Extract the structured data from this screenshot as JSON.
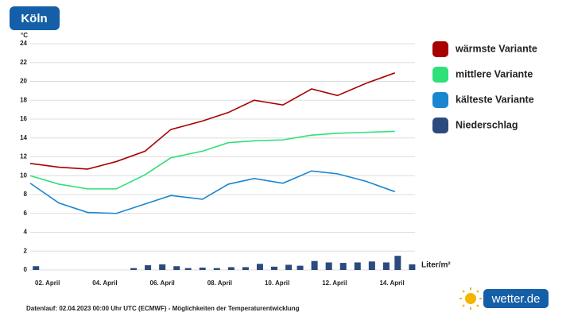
{
  "title": "Köln",
  "footer": "Datenlauf: 02.04.2023 00:00 Uhr UTC (ECMWF) - Möglichkeiten der Temperaturentwicklung",
  "logo": "wetter.de",
  "chart_data": {
    "type": "line",
    "y_unit": "°C",
    "bar_unit": "Liter/m²",
    "xlim": [
      1.4,
      14.8
    ],
    "xticks": [
      {
        "value": 2,
        "label": "02. April"
      },
      {
        "value": 4,
        "label": "04. April"
      },
      {
        "value": 6,
        "label": "06. April"
      },
      {
        "value": 8,
        "label": "08. April"
      },
      {
        "value": 10,
        "label": "10. April"
      },
      {
        "value": 12,
        "label": "12. April"
      },
      {
        "value": 14,
        "label": "14. April"
      }
    ],
    "ylim": [
      0,
      24
    ],
    "yticks": [
      0,
      2,
      4,
      6,
      8,
      10,
      12,
      14,
      16,
      18,
      20,
      22,
      24
    ],
    "grid": true,
    "x": [
      1.4,
      2.4,
      3.4,
      4.4,
      5.4,
      6.3,
      7.4,
      8.3,
      9.2,
      10.2,
      11.2,
      12.1,
      13.1,
      14.1
    ],
    "series": [
      {
        "name": "wärmste Variante",
        "color": "#a80000",
        "values": [
          11.3,
          10.9,
          10.7,
          11.5,
          12.6,
          14.9,
          15.8,
          16.7,
          18.0,
          17.5,
          19.2,
          18.5,
          19.8,
          20.9
        ]
      },
      {
        "name": "mittlere Variante",
        "color": "#2fe07a",
        "values": [
          10.0,
          9.1,
          8.6,
          8.6,
          10.1,
          11.9,
          12.6,
          13.5,
          13.7,
          13.8,
          14.3,
          14.5,
          14.6,
          14.7
        ]
      },
      {
        "name": "kälteste Variante",
        "color": "#1a86d0",
        "values": [
          9.2,
          7.1,
          6.1,
          6.0,
          7.0,
          7.9,
          7.5,
          9.1,
          9.7,
          9.2,
          10.5,
          10.2,
          9.4,
          8.3
        ]
      },
      {
        "name": "Niederschlag",
        "type": "bar",
        "color": "#2b4a7e",
        "x": [
          1.6,
          2.1,
          2.6,
          3.1,
          3.5,
          4.0,
          4.5,
          5.0,
          5.5,
          6.0,
          6.5,
          6.9,
          7.4,
          7.9,
          8.4,
          8.9,
          9.4,
          9.9,
          10.4,
          10.8,
          11.3,
          11.8,
          12.3,
          12.8,
          13.3,
          13.8,
          14.2,
          14.7
        ],
        "values": [
          0.4,
          0,
          0,
          0,
          0,
          0,
          0,
          0.2,
          0.5,
          0.6,
          0.4,
          0.2,
          0.25,
          0.2,
          0.3,
          0.3,
          0.65,
          0.35,
          0.55,
          0.45,
          0.95,
          0.8,
          0.75,
          0.8,
          0.9,
          0.8,
          1.5,
          0.6
        ]
      }
    ]
  }
}
